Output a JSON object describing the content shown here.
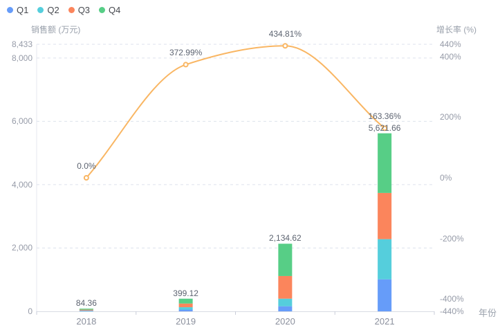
{
  "legend": {
    "items": [
      {
        "label": "Q1",
        "color": "#669cf9"
      },
      {
        "label": "Q2",
        "color": "#55cedc"
      },
      {
        "label": "Q3",
        "color": "#fb855c"
      },
      {
        "label": "Q4",
        "color": "#57ce86"
      }
    ]
  },
  "chart_data": {
    "type": "bar",
    "subtype": "stacked-bar-with-line",
    "categories": [
      "2018",
      "2019",
      "2020",
      "2021"
    ],
    "series": [
      {
        "name": "Q1",
        "type": "bar",
        "color": "#669cf9",
        "values": [
          11,
          55,
          160,
          1012
        ]
      },
      {
        "name": "Q2",
        "type": "bar",
        "color": "#55cedc",
        "values": [
          15,
          75,
          240,
          1268
        ]
      },
      {
        "name": "Q3",
        "type": "bar",
        "color": "#fb855c",
        "values": [
          26,
          116,
          715,
          1458
        ]
      },
      {
        "name": "Q4",
        "type": "bar",
        "color": "#57ce86",
        "values": [
          32.36,
          153.12,
          1019.62,
          1883.66
        ]
      }
    ],
    "quarterly_values_estimated_from_pixels": true,
    "bar_totals": [
      84.36,
      399.12,
      2134.62,
      5621.66
    ],
    "bar_total_labels": [
      "84.36",
      "399.12",
      "2,134.62",
      "5,621.66"
    ],
    "growth_line": {
      "color": "#f9b663",
      "values": [
        0.0,
        372.99,
        434.81,
        163.36
      ],
      "labels": [
        "0.0%",
        "372.99%",
        "434.81%",
        "163.36%"
      ],
      "smooth": true,
      "marker": "hollow-circle"
    },
    "left_axis": {
      "title": "销售额 (万元)",
      "min": 0,
      "max": 8433,
      "tick_values": [
        0,
        2000,
        4000,
        6000,
        8000,
        8433
      ],
      "tick_labels": [
        "0",
        "2,000",
        "4,000",
        "6,000",
        "8,000",
        "8,433"
      ],
      "grid": true
    },
    "right_axis": {
      "title": "增长率 (%)",
      "min": -440,
      "max": 440,
      "tick_values": [
        -440,
        -400,
        -200,
        0,
        200,
        400,
        440
      ],
      "tick_labels": [
        "-440%",
        "-400%",
        "-200%",
        "0%",
        "200%",
        "400%",
        "440%"
      ],
      "grid": false
    },
    "x_axis": {
      "title": "年份",
      "labels": [
        "2018",
        "2019",
        "2020",
        "2021"
      ]
    },
    "legend_position": "top-left",
    "grid_style": "dashed",
    "colors": {
      "background": "#ffffff",
      "gridline": "#dde2ec",
      "x_axis_line": "#d8dbe3",
      "y_axis_line": "#e4e7ef",
      "tick_mark": "#c9cdd8",
      "tick_text": "#969ba8",
      "data_label_text": "#5c6370"
    }
  }
}
